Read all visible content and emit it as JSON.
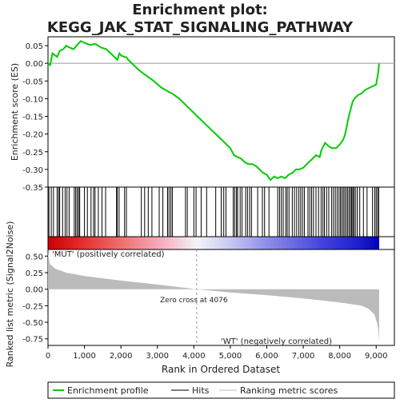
{
  "chart_data": {
    "type": "line",
    "title": "Enrichment plot:",
    "subtitle": "KEGG_JAK_STAT_SIGNALING_PATHWAY",
    "x_axis": {
      "label": "Rank in Ordered Dataset",
      "range": [
        0,
        9500
      ],
      "ticks": [
        0,
        1000,
        2000,
        3000,
        4000,
        5000,
        6000,
        7000,
        8000,
        9000
      ],
      "tick_labels": [
        "0",
        "1,000",
        "2,000",
        "3,000",
        "4,000",
        "5,000",
        "6,000",
        "7,000",
        "8,000",
        "9,000"
      ]
    },
    "es_panel": {
      "ylabel": "Enrichment score (ES)",
      "ylim": [
        -0.35,
        0.075
      ],
      "yticks": [
        0.05,
        0.0,
        -0.05,
        -0.1,
        -0.15,
        -0.2,
        -0.25,
        -0.3,
        -0.35
      ],
      "ytick_labels": [
        "0.05",
        "0.00",
        "-0.05",
        "-0.10",
        "-0.15",
        "-0.20",
        "-0.25",
        "-0.30",
        "-0.35"
      ],
      "line_color": "#00cc00",
      "series": [
        {
          "x": [
            0,
            60,
            120,
            250,
            320,
            420,
            500,
            560,
            700,
            800,
            900,
            1000,
            1150,
            1300,
            1450,
            1600,
            1750,
            1900,
            1960,
            2000,
            2100,
            2150,
            2200,
            2350,
            2500,
            2700,
            2900,
            3100,
            3300,
            3400,
            3600,
            3800,
            4000,
            4200,
            4400,
            4600,
            4800,
            5000,
            5100,
            5300,
            5400,
            5500,
            5600,
            5700,
            5800,
            5900,
            6000,
            6100,
            6200,
            6300,
            6400,
            6500,
            6600,
            6700,
            6800,
            6900,
            7000,
            7100,
            7200,
            7300,
            7350,
            7450,
            7500,
            7600,
            7700,
            7800,
            7900,
            8000,
            8100,
            8150,
            8200,
            8250,
            8300,
            8350,
            8400,
            8500,
            8600,
            8700,
            8800,
            8900,
            9000,
            9050,
            9080
          ],
          "y": [
            0.0,
            -0.005,
            0.028,
            0.018,
            0.035,
            0.04,
            0.05,
            0.046,
            0.04,
            0.052,
            0.063,
            0.058,
            0.052,
            0.055,
            0.045,
            0.04,
            0.025,
            0.01,
            0.028,
            0.022,
            0.018,
            0.017,
            0.01,
            -0.005,
            -0.02,
            -0.035,
            -0.05,
            -0.068,
            -0.08,
            -0.085,
            -0.1,
            -0.12,
            -0.14,
            -0.16,
            -0.18,
            -0.2,
            -0.22,
            -0.24,
            -0.26,
            -0.27,
            -0.28,
            -0.285,
            -0.285,
            -0.29,
            -0.3,
            -0.31,
            -0.315,
            -0.33,
            -0.32,
            -0.325,
            -0.32,
            -0.325,
            -0.315,
            -0.31,
            -0.3,
            -0.3,
            -0.295,
            -0.285,
            -0.275,
            -0.265,
            -0.26,
            -0.265,
            -0.245,
            -0.225,
            -0.235,
            -0.24,
            -0.24,
            -0.23,
            -0.215,
            -0.2,
            -0.175,
            -0.15,
            -0.13,
            -0.11,
            -0.1,
            -0.09,
            -0.085,
            -0.075,
            -0.07,
            -0.065,
            -0.06,
            -0.03,
            0.0
          ]
        }
      ]
    },
    "hits": [
      25,
      90,
      150,
      250,
      290,
      320,
      400,
      470,
      520,
      580,
      720,
      760,
      800,
      840,
      870,
      1000,
      1080,
      1180,
      1250,
      1290,
      1380,
      1480,
      1580,
      1880,
      1900,
      1950,
      2100,
      2150,
      2560,
      2650,
      2750,
      2850,
      3050,
      3150,
      3280,
      3320,
      3370,
      3410,
      3770,
      3820,
      4000,
      4060,
      4200,
      4350,
      4600,
      4750,
      4820,
      4880,
      5080,
      5120,
      5170,
      5200,
      5270,
      5320,
      5420,
      5470,
      5530,
      5580,
      5750,
      5880,
      5940,
      6060,
      6300,
      6350,
      6400,
      6450,
      6520,
      6560,
      6610,
      6700,
      6760,
      6820,
      6880,
      6930,
      6980,
      7030,
      7130,
      7180,
      7230,
      7280,
      7350,
      7420,
      7490,
      7540,
      7580,
      7640,
      7700,
      7780,
      7830,
      7880,
      7930,
      7980,
      8020,
      8060,
      8100,
      8140,
      8180,
      8220,
      8260,
      8300,
      8330,
      8360,
      8390,
      8430,
      8480,
      8550,
      8650,
      8750,
      8900,
      8960,
      9000,
      9040,
      9070
    ],
    "metric_panel": {
      "ylabel": "Ranked list metric (Signal2Noise)",
      "ylim": [
        -0.85,
        0.6
      ],
      "yticks": [
        0.5,
        0.25,
        0.0,
        -0.25,
        -0.5,
        -0.75
      ],
      "ytick_labels": [
        "0.50",
        "0.25",
        "0.00",
        "-0.25",
        "-0.50",
        "-0.75"
      ],
      "fill_color": "#bbbbbb",
      "x": [
        0,
        50,
        200,
        500,
        1000,
        2000,
        3000,
        4076,
        5000,
        6000,
        7000,
        8000,
        8600,
        8800,
        8950,
        9020,
        9060,
        9080
      ],
      "y": [
        0.55,
        0.38,
        0.31,
        0.25,
        0.2,
        0.13,
        0.07,
        0.0,
        -0.05,
        -0.09,
        -0.14,
        -0.2,
        -0.25,
        -0.3,
        -0.38,
        -0.5,
        -0.62,
        -0.8
      ],
      "zero_cross_label": "Zero cross at 4076",
      "zero_cross_rank": 4076,
      "pos_label": "'MUT' (positively correlated)",
      "neg_label": "'WT' (negatively correlated)",
      "pos_label_color": "#cc0000",
      "neg_label_color": "#0000cc"
    },
    "colorbar": {
      "stops": [
        {
          "rank": 0,
          "color": "#cc0000"
        },
        {
          "rank": 900,
          "color": "#e22c2c"
        },
        {
          "rank": 2000,
          "color": "#ef6f6f"
        },
        {
          "rank": 3200,
          "color": "#f6b3c6"
        },
        {
          "rank": 4076,
          "color": "#f4f4f8"
        },
        {
          "rank": 5000,
          "color": "#c8c8f4"
        },
        {
          "rank": 6000,
          "color": "#8f8fe8"
        },
        {
          "rank": 7500,
          "color": "#4444dd"
        },
        {
          "rank": 8600,
          "color": "#1a1acc"
        },
        {
          "rank": 9080,
          "color": "#0000bb"
        }
      ]
    },
    "legend": {
      "placement": "bottom",
      "items": [
        {
          "label": "Enrichment profile",
          "color": "#00cc00"
        },
        {
          "label": "Hits",
          "color": "#000000"
        },
        {
          "label": "Ranking metric scores",
          "color": "#bbbbbb"
        }
      ]
    }
  }
}
